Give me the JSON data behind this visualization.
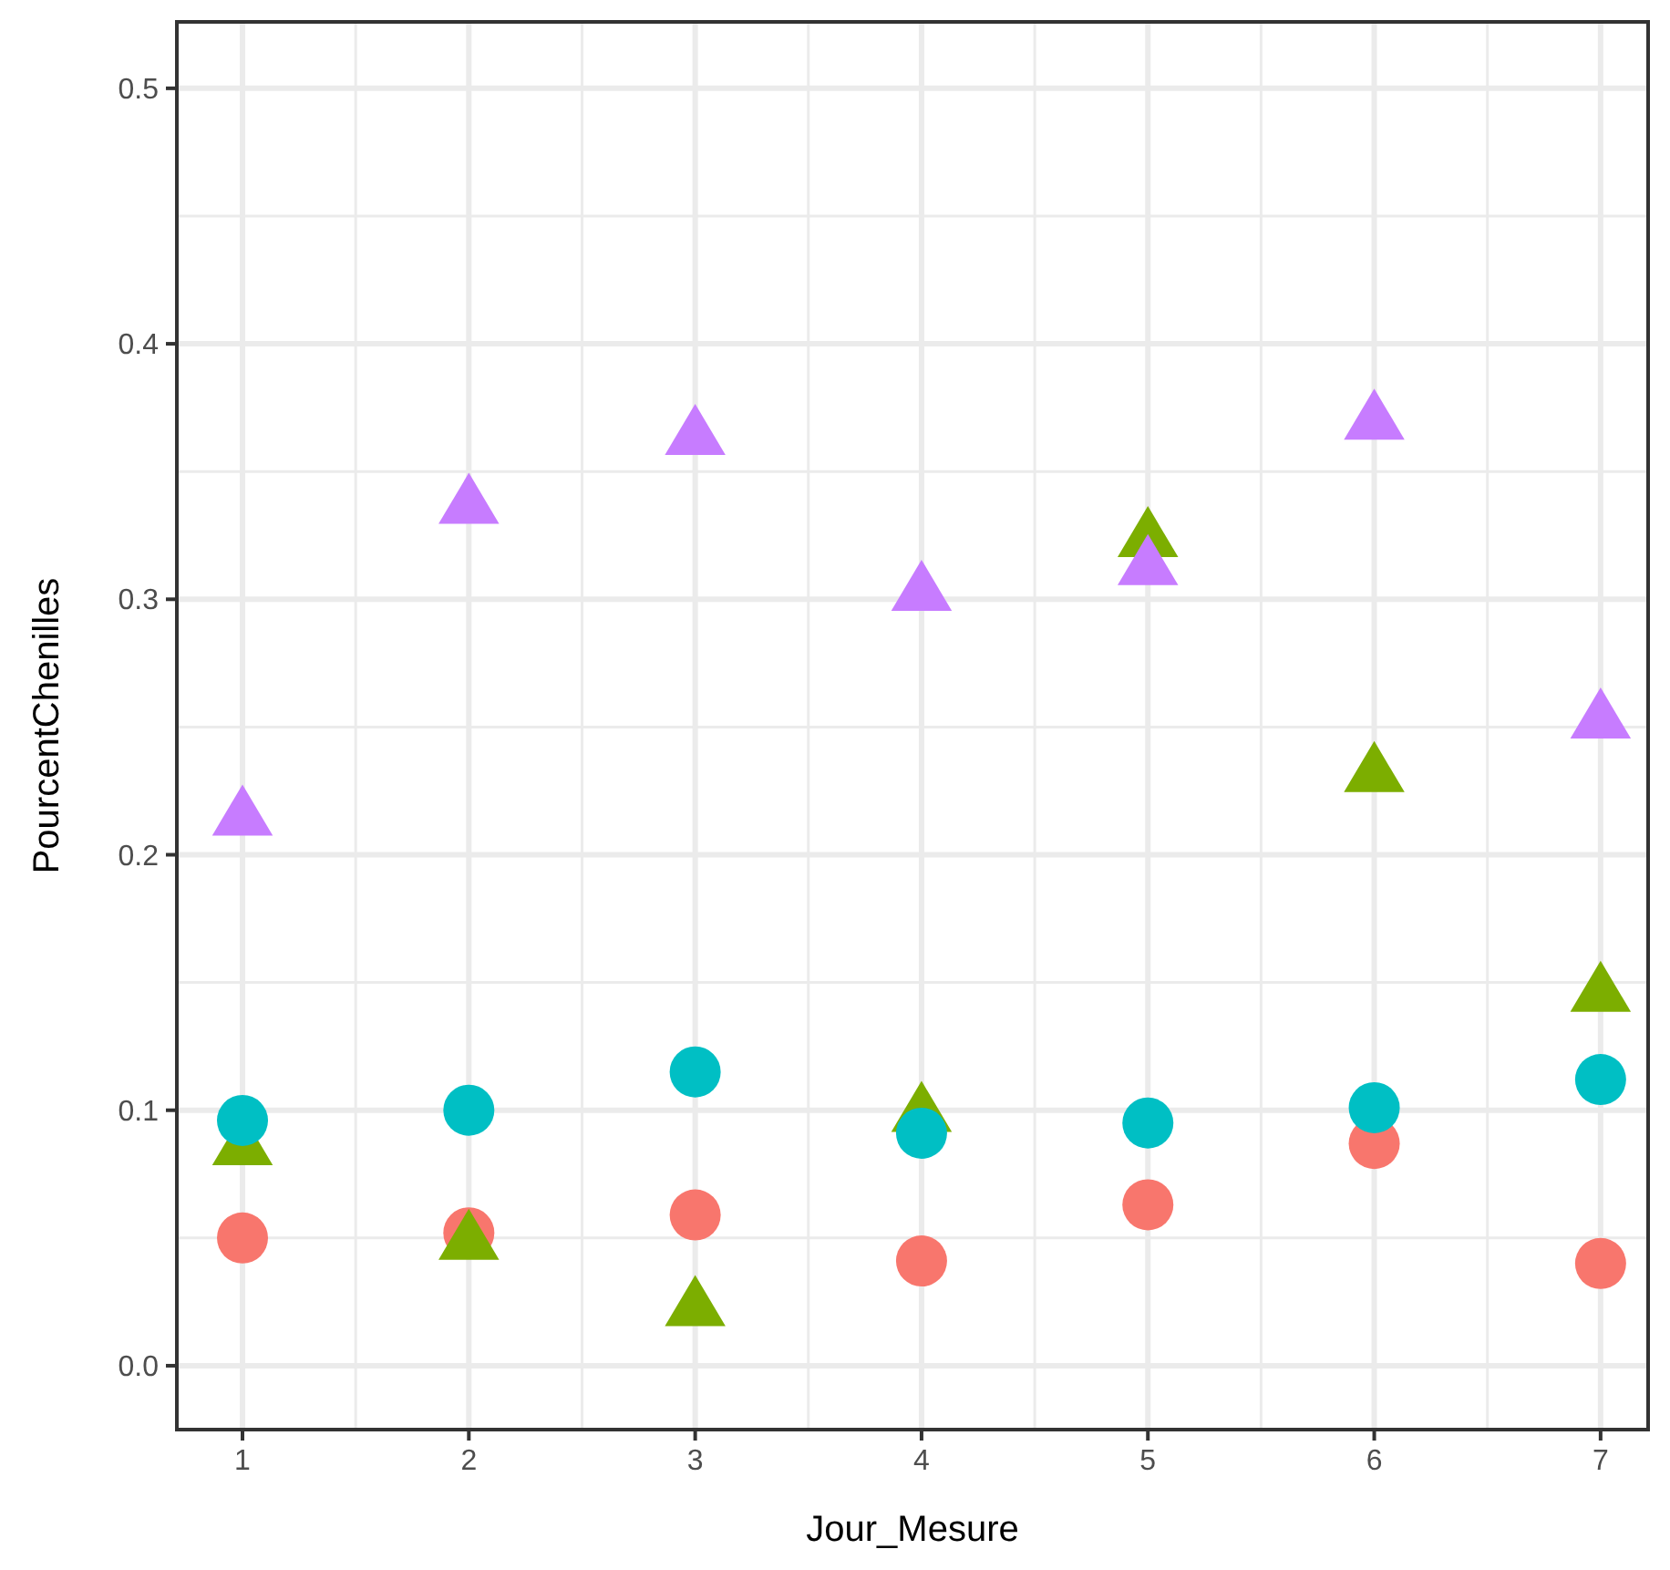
{
  "chart_data": {
    "type": "scatter",
    "xlabel": "Jour_Mesure",
    "ylabel": "PourcentChenilles",
    "x": [
      1,
      2,
      3,
      4,
      5,
      6,
      7
    ],
    "series": [
      {
        "color": "#f8766d",
        "marker": "circle",
        "values": [
          0.05,
          0.052,
          0.059,
          0.041,
          0.063,
          0.087,
          0.04
        ]
      },
      {
        "color": "#7cae00",
        "marker": "triangle",
        "values": [
          0.086,
          0.049,
          0.023,
          0.099,
          0.324,
          0.232,
          0.146
        ]
      },
      {
        "color": "#00bfc4",
        "marker": "circle",
        "values": [
          0.096,
          0.1,
          0.115,
          0.091,
          0.095,
          0.101,
          0.112
        ]
      },
      {
        "color": "#c77cff",
        "marker": "triangle",
        "values": [
          0.215,
          0.337,
          0.364,
          0.303,
          0.313,
          0.37,
          0.253
        ]
      }
    ],
    "xlim": [
      0.71,
      7.21
    ],
    "xticks": [
      1,
      2,
      3,
      4,
      5,
      6,
      7
    ],
    "ylim": [
      -0.025,
      0.526
    ],
    "yticks": [
      {
        "value": 0,
        "label": "0.0"
      },
      0.1,
      0.2,
      0.3,
      0.4,
      0.5
    ],
    "grid": true
  }
}
